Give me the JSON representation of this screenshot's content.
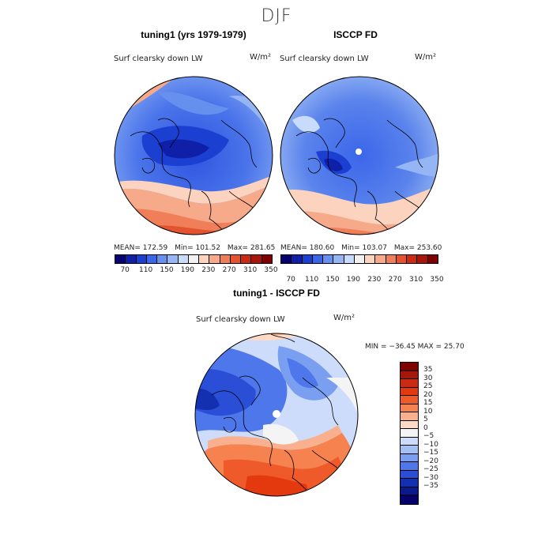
{
  "season": "DJF",
  "panels": {
    "model": {
      "title": "tuning1 (yrs 1979-1979)",
      "variable": "Surf clearsky down LW",
      "units": "W/m²",
      "stats": {
        "mean_label": "MEAN= 172.59",
        "min_label": "Min= 101.52",
        "max_label": "Max= 281.65"
      }
    },
    "obs": {
      "title": "ISCCP FD",
      "variable": "Surf clearsky down LW",
      "units": "W/m²",
      "stats": {
        "mean_label": "MEAN= 180.60",
        "min_label": "Min= 103.07",
        "max_label": "Max= 253.60"
      }
    },
    "diff": {
      "title": "tuning1 - ISCCP FD",
      "variable": "Surf clearsky down LW",
      "units": "W/m²",
      "minmax_label": "MIN = −36.45 MAX =  25.70"
    }
  },
  "colorbar_abs": {
    "labels": [
      "70",
      "110",
      "150",
      "190",
      "230",
      "270",
      "310",
      "350"
    ],
    "colors": [
      "#08006e",
      "#0f1fa8",
      "#1a3fd1",
      "#3b66ea",
      "#6690ee",
      "#95b5f4",
      "#c9dbfa",
      "#f2f2f2",
      "#fbd3bf",
      "#f6aa8a",
      "#f07e58",
      "#e4532f",
      "#cb2b14",
      "#a8150a",
      "#800000"
    ]
  },
  "colorbar_diff": {
    "labels": [
      "35",
      "30",
      "25",
      "20",
      "15",
      "10",
      "5",
      "0",
      "−5",
      "−10",
      "−15",
      "−20",
      "−25",
      "−30",
      "−35"
    ],
    "colors": [
      "#800000",
      "#a8150a",
      "#cb2b14",
      "#e4390f",
      "#ef5a2a",
      "#f6824f",
      "#f9b08f",
      "#fcdac6",
      "#f4f4f4",
      "#cddcfa",
      "#a4bff4",
      "#7a9ef0",
      "#4d77ea",
      "#2a4fd6",
      "#1330b0",
      "#0a1a8c",
      "#05006b"
    ]
  }
}
